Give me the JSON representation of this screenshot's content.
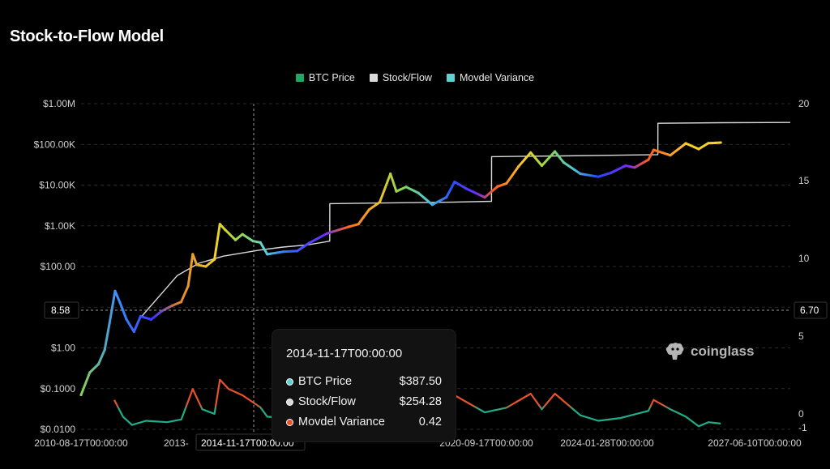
{
  "page": {
    "title": "Stock-to-Flow Model"
  },
  "legend": [
    {
      "label": "BTC Price",
      "color": "#22a565"
    },
    {
      "label": "Stock/Flow",
      "color": "#d9d9d9"
    },
    {
      "label": "Movdel Variance",
      "color": "#5fd3d1"
    }
  ],
  "crosshair": {
    "x_label": "2014-11-17T00:00:00",
    "left_value": "8.58",
    "right_value": "6.70"
  },
  "tooltip": {
    "date": "2014-11-17T00:00:00",
    "rows": [
      {
        "name": "BTC Price",
        "value": "$387.50",
        "dot_color": "#5fd3d1"
      },
      {
        "name": "Stock/Flow",
        "value": "$254.28",
        "dot_color": "#d9d9d9"
      },
      {
        "name": "Movdel Variance",
        "value": "0.42",
        "dot_color": "#e8522a"
      }
    ]
  },
  "watermark": {
    "text": "coinglass",
    "icon": "coinglass-logo-icon"
  },
  "chart_data": {
    "type": "line",
    "title": "Stock-to-Flow Model",
    "x_ticks": [
      "2010-08-17T00:00:00",
      "2013-",
      "2014-11-17T00:00:00",
      "2020-09-17T00:00:00",
      "2024-01-28T00:00:00",
      "2027-06-10T00:00:00"
    ],
    "x_range": [
      "2010-08-17",
      "2027-06-10"
    ],
    "y_left_scale": "log",
    "y_left_ticks": [
      "$0.0100",
      "$0.1000",
      "$1.00",
      "$10.00",
      "$100.00",
      "$1.00K",
      "$10.00K",
      "$100.00K",
      "$1.00M"
    ],
    "y_left_range": [
      0.01,
      1000000
    ],
    "y_right_ticks": [
      "-1",
      "0",
      "5",
      "10",
      "15",
      "20"
    ],
    "y_right_range": [
      -1,
      20
    ],
    "legend_position": "top-center",
    "grid": true,
    "series": [
      {
        "name": "BTC Price",
        "axis": "left",
        "color": "#22a565",
        "points": [
          [
            "2010-08-17",
            0.07
          ],
          [
            "2010-11-01",
            0.25
          ],
          [
            "2011-01-15",
            0.4
          ],
          [
            "2011-03-10",
            0.9
          ],
          [
            "2011-04-20",
            4
          ],
          [
            "2011-06-08",
            25
          ],
          [
            "2011-07-20",
            13
          ],
          [
            "2011-09-15",
            5
          ],
          [
            "2011-11-18",
            2.5
          ],
          [
            "2012-01-15",
            6
          ],
          [
            "2012-04-15",
            5
          ],
          [
            "2012-07-15",
            8
          ],
          [
            "2012-10-15",
            11
          ],
          [
            "2012-12-31",
            13.5
          ],
          [
            "2013-03-01",
            33
          ],
          [
            "2013-04-10",
            200
          ],
          [
            "2013-05-15",
            110
          ],
          [
            "2013-08-01",
            100
          ],
          [
            "2013-10-15",
            150
          ],
          [
            "2013-12-01",
            1100
          ],
          [
            "2014-01-15",
            800
          ],
          [
            "2014-04-15",
            450
          ],
          [
            "2014-06-15",
            620
          ],
          [
            "2014-09-15",
            420
          ],
          [
            "2014-11-17",
            387.5
          ],
          [
            "2015-01-15",
            200
          ],
          [
            "2015-06-01",
            230
          ],
          [
            "2015-10-01",
            240
          ],
          [
            "2016-01-15",
            380
          ],
          [
            "2016-06-15",
            650
          ],
          [
            "2016-12-31",
            960
          ],
          [
            "2017-03-15",
            1100
          ],
          [
            "2017-06-15",
            2500
          ],
          [
            "2017-09-15",
            3800
          ],
          [
            "2017-12-17",
            19000
          ],
          [
            "2018-02-06",
            7000
          ],
          [
            "2018-05-01",
            9000
          ],
          [
            "2018-08-15",
            6400
          ],
          [
            "2018-12-15",
            3300
          ],
          [
            "2019-04-15",
            5000
          ],
          [
            "2019-06-26",
            12000
          ],
          [
            "2019-10-01",
            8300
          ],
          [
            "2020-03-13",
            5000
          ],
          [
            "2020-07-01",
            9200
          ],
          [
            "2020-09-17",
            11000
          ],
          [
            "2020-12-31",
            29000
          ],
          [
            "2021-04-14",
            63000
          ],
          [
            "2021-07-20",
            30000
          ],
          [
            "2021-11-10",
            67000
          ],
          [
            "2022-01-24",
            36000
          ],
          [
            "2022-06-18",
            19000
          ],
          [
            "2022-11-21",
            16000
          ],
          [
            "2023-03-10",
            20000
          ],
          [
            "2023-07-15",
            30000
          ],
          [
            "2023-10-01",
            27000
          ],
          [
            "2024-01-28",
            42000
          ],
          [
            "2024-03-14",
            73000
          ],
          [
            "2024-08-05",
            54000
          ],
          [
            "2024-12-17",
            106000
          ],
          [
            "2025-04-08",
            77000
          ],
          [
            "2025-06-30",
            107000
          ],
          [
            "2025-09-01",
            109000
          ],
          [
            "2025-10-15",
            111000
          ]
        ]
      },
      {
        "name": "Stock/Flow",
        "axis": "left",
        "color": "#d9d9d9",
        "points": [
          [
            "2012-01-01",
            5
          ],
          [
            "2012-11-28",
            60
          ],
          [
            "2013-06-01",
            120
          ],
          [
            "2014-01-01",
            180
          ],
          [
            "2014-11-17",
            254.28
          ],
          [
            "2015-06-01",
            300
          ],
          [
            "2016-01-01",
            340
          ],
          [
            "2016-07-09",
            420
          ],
          [
            "2016-07-10",
            3500
          ],
          [
            "2017-06-01",
            3600
          ],
          [
            "2018-06-01",
            3700
          ],
          [
            "2019-06-01",
            3800
          ],
          [
            "2020-05-10",
            4000
          ],
          [
            "2020-05-11",
            50000
          ],
          [
            "2022-01-01",
            52000
          ],
          [
            "2024-04-19",
            56000
          ],
          [
            "2024-04-20",
            330000
          ],
          [
            "2025-10-15",
            340000
          ],
          [
            "2027-06-10",
            345000
          ]
        ]
      },
      {
        "name": "Movdel Variance",
        "axis": "right",
        "color": "#5fd3d1",
        "points": [
          [
            "2011-06-01",
            0.9
          ],
          [
            "2011-08-15",
            -0.2
          ],
          [
            "2011-11-01",
            -0.8
          ],
          [
            "2012-03-01",
            -0.5
          ],
          [
            "2012-09-01",
            -0.6
          ],
          [
            "2013-01-01",
            -0.4
          ],
          [
            "2013-04-10",
            1.6
          ],
          [
            "2013-07-01",
            0.3
          ],
          [
            "2013-10-15",
            0.0
          ],
          [
            "2013-12-01",
            2.2
          ],
          [
            "2014-02-15",
            1.6
          ],
          [
            "2014-06-15",
            1.2
          ],
          [
            "2014-11-17",
            0.42
          ],
          [
            "2015-01-15",
            -0.2
          ],
          [
            "2015-06-01",
            -0.3
          ],
          [
            "2016-01-15",
            -0.2
          ],
          [
            "2016-06-15",
            0.4
          ],
          [
            "2017-01-01",
            0.3
          ],
          [
            "2017-06-15",
            0.9
          ],
          [
            "2017-12-17",
            2.0
          ],
          [
            "2018-06-01",
            0.6
          ],
          [
            "2018-12-15",
            -0.1
          ],
          [
            "2019-06-26",
            1.2
          ],
          [
            "2020-03-13",
            0.1
          ],
          [
            "2020-09-17",
            0.4
          ],
          [
            "2021-04-14",
            1.3
          ],
          [
            "2021-07-20",
            0.3
          ],
          [
            "2021-11-10",
            1.3
          ],
          [
            "2022-06-18",
            -0.1
          ],
          [
            "2022-11-21",
            -0.5
          ],
          [
            "2023-06-01",
            -0.3
          ],
          [
            "2024-01-28",
            0.2
          ],
          [
            "2024-03-14",
            0.9
          ],
          [
            "2024-08-05",
            0.3
          ],
          [
            "2024-12-17",
            -0.2
          ],
          [
            "2025-04-08",
            -0.9
          ],
          [
            "2025-07-01",
            -0.6
          ],
          [
            "2025-10-15",
            -0.7
          ]
        ]
      }
    ]
  }
}
